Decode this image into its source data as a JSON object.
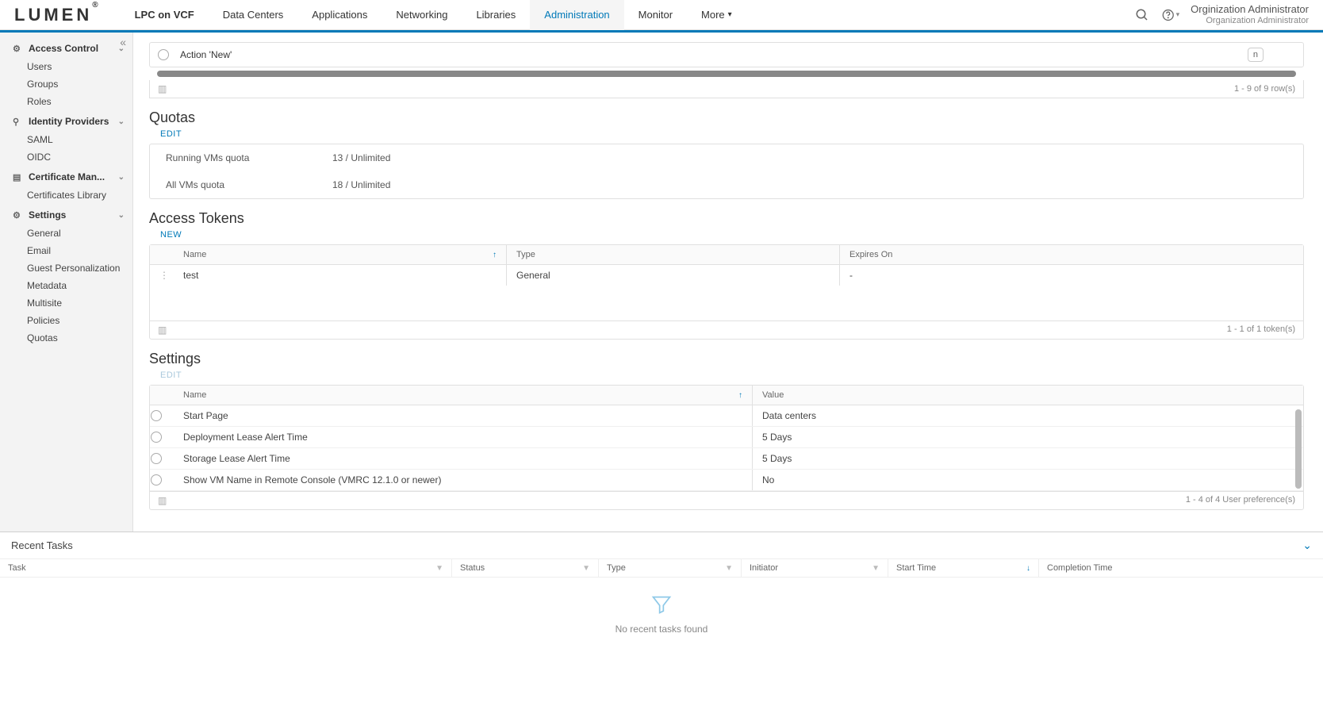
{
  "header": {
    "logo": "LUMEN",
    "nav": [
      {
        "label": "LPC on VCF",
        "bold": true
      },
      {
        "label": "Data Centers"
      },
      {
        "label": "Applications"
      },
      {
        "label": "Networking"
      },
      {
        "label": "Libraries"
      },
      {
        "label": "Administration",
        "active": true
      },
      {
        "label": "Monitor"
      },
      {
        "label": "More"
      }
    ],
    "user_name": "Orginization Administrator",
    "user_role": "Organization Administrator"
  },
  "sidebar": {
    "groups": [
      {
        "title": "Access Control",
        "icon": "⚙",
        "items": [
          "Users",
          "Groups",
          "Roles"
        ]
      },
      {
        "title": "Identity Providers",
        "icon": "⚲",
        "items": [
          "SAML",
          "OIDC"
        ]
      },
      {
        "title": "Certificate Man...",
        "icon": "▤",
        "items": [
          "Certificates Library"
        ]
      },
      {
        "title": "Settings",
        "icon": "⚙",
        "items": [
          "General",
          "Email",
          "Guest Personalization",
          "Metadata",
          "Multisite",
          "Policies",
          "Quotas"
        ]
      }
    ]
  },
  "action_row": {
    "label": "Action 'New'",
    "key": "n"
  },
  "row_count": "1 - 9 of 9 row(s)",
  "quotas": {
    "title": "Quotas",
    "edit": "EDIT",
    "rows": [
      {
        "label": "Running VMs quota",
        "value": "13 / Unlimited"
      },
      {
        "label": "All VMs quota",
        "value": "18 / Unlimited"
      }
    ]
  },
  "tokens": {
    "title": "Access Tokens",
    "new": "NEW",
    "cols": {
      "name": "Name",
      "type": "Type",
      "expires": "Expires On"
    },
    "rows": [
      {
        "name": "test",
        "type": "General",
        "expires": "-"
      }
    ],
    "footer": "1 - 1 of 1 token(s)"
  },
  "settings": {
    "title": "Settings",
    "edit": "EDIT",
    "cols": {
      "name": "Name",
      "value": "Value"
    },
    "rows": [
      {
        "name": "Start Page",
        "value": "Data centers"
      },
      {
        "name": "Deployment Lease Alert Time",
        "value": "5 Days"
      },
      {
        "name": "Storage Lease Alert Time",
        "value": "5 Days"
      },
      {
        "name": "Show VM Name in Remote Console (VMRC 12.1.0 or newer)",
        "value": "No"
      }
    ],
    "footer": "1 - 4 of 4 User preference(s)"
  },
  "tasks": {
    "title": "Recent Tasks",
    "cols": {
      "task": "Task",
      "status": "Status",
      "type": "Type",
      "initiator": "Initiator",
      "start": "Start Time",
      "completion": "Completion Time"
    },
    "empty": "No recent tasks found"
  }
}
